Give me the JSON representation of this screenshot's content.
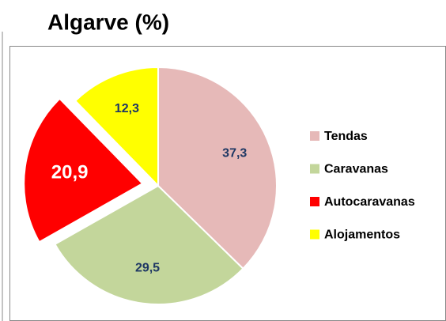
{
  "chart_data": {
    "type": "pie",
    "title": "Algarve (%)",
    "categories": [
      "Tendas",
      "Caravanas",
      "Autocaravanas",
      "Alojamentos"
    ],
    "values": [
      37.3,
      29.5,
      20.9,
      12.3
    ],
    "value_labels": [
      "37,3",
      "29,5",
      "20,9",
      "12,3"
    ],
    "colors": [
      "#e6b9b8",
      "#c3d69b",
      "#ff0000",
      "#ffff00"
    ],
    "label_colors": [
      "#1f3864",
      "#1f3864",
      "#ffffff",
      "#1f3864"
    ],
    "explode": [
      false,
      false,
      true,
      false
    ],
    "legend": "right"
  }
}
